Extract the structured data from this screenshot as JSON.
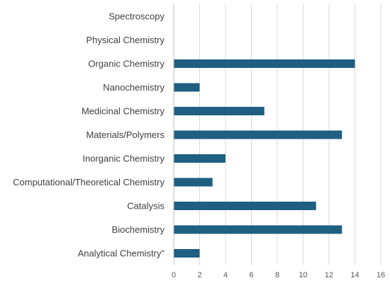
{
  "chart_data": {
    "type": "bar",
    "orientation": "horizontal",
    "categories": [
      "Spectroscopy",
      "Physical Chemistry",
      "Organic Chemistry",
      "Nanochemistry",
      "Medicinal Chemistry",
      "Materials/Polymers",
      "Inorganic Chemistry",
      "Computational/Theoretical Chemistry",
      "Catalysis",
      "Biochemistry",
      "Analytical Chemistry\""
    ],
    "values": [
      0,
      0,
      14,
      2,
      7,
      13,
      4,
      3,
      11,
      13,
      2
    ],
    "xlim": [
      0,
      16
    ],
    "xticks": [
      0,
      2,
      4,
      6,
      8,
      10,
      12,
      14,
      16
    ],
    "grid": true,
    "legend": "none",
    "title": "",
    "xlabel": "",
    "ylabel": "",
    "bar_color": "#1f5f82"
  }
}
